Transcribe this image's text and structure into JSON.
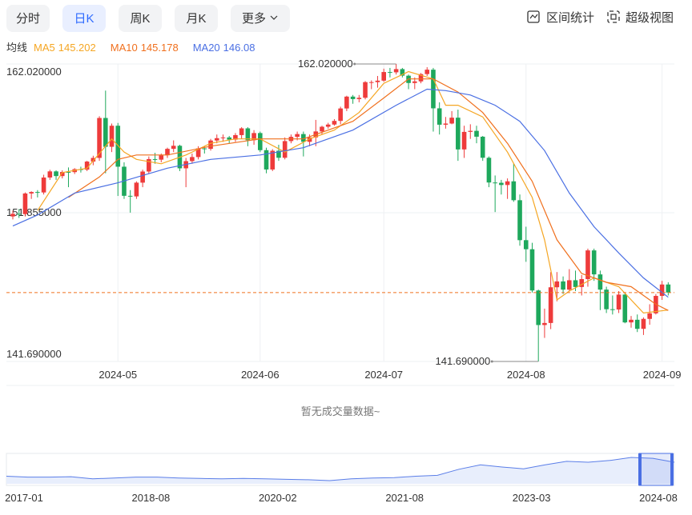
{
  "toolbar": {
    "tabs": [
      "分时",
      "日K",
      "周K",
      "月K",
      "更多"
    ],
    "active_tab": 1,
    "tools": [
      "区间统计",
      "超级视图"
    ]
  },
  "chart_data": {
    "type": "candlestick",
    "legend_title": "均线",
    "up_color": "#ee3b3b",
    "down_color": "#1ea85c",
    "categories": [
      null,
      null,
      null,
      null,
      null,
      null,
      null,
      null,
      null,
      null,
      null,
      null,
      null,
      null,
      null,
      null,
      null,
      "2024-05",
      null,
      null,
      null,
      null,
      null,
      null,
      null,
      null,
      null,
      null,
      null,
      null,
      null,
      null,
      null,
      null,
      null,
      null,
      null,
      null,
      null,
      null,
      "2024-06",
      null,
      null,
      null,
      null,
      null,
      null,
      null,
      null,
      null,
      null,
      null,
      null,
      null,
      null,
      null,
      null,
      null,
      null,
      null,
      "2024-07",
      null,
      null,
      null,
      null,
      null,
      null,
      null,
      null,
      null,
      null,
      null,
      null,
      null,
      null,
      null,
      null,
      null,
      null,
      null,
      null,
      null,
      null,
      "2024-08",
      null,
      null,
      null,
      null,
      null,
      null,
      null,
      null,
      null,
      null,
      null,
      null,
      null,
      null,
      null,
      null,
      null,
      null,
      null,
      null,
      null,
      "2024-09",
      null
    ],
    "open": [
      151.6,
      151.78,
      151.76,
      153.17,
      153.27,
      153.24,
      154.26,
      154.68,
      154.36,
      154.64,
      154.63,
      154.83,
      154.8,
      155.35,
      155.6,
      158.33,
      156.36,
      157.8,
      155.0,
      153.01,
      152.97,
      153.91,
      154.67,
      155.52,
      155.48,
      155.78,
      156.22,
      156.43,
      154.89,
      155.38,
      155.66,
      156.25,
      156.22,
      156.79,
      156.95,
      157.0,
      156.85,
      157.16,
      157.62,
      156.81,
      157.3,
      156.13,
      154.81,
      156.09,
      155.61,
      156.75,
      157.04,
      157.23,
      156.7,
      157.0,
      157.41,
      157.73,
      157.88,
      158.13,
      158.98,
      159.79,
      159.62,
      159.71,
      160.78,
      160.78,
      160.88,
      161.47,
      161.45,
      161.67,
      161.22,
      160.72,
      160.83,
      161.33,
      161.63,
      158.99,
      157.87,
      157.95,
      158.35,
      156.18,
      157.38,
      157.45,
      157.05,
      155.61,
      153.92,
      153.9,
      153.75,
      154.0,
      152.71,
      149.98,
      149.36,
      146.54,
      144.18,
      144.32,
      146.76,
      147.16,
      146.6,
      147.24,
      146.78,
      147.32,
      149.28,
      147.64,
      146.6,
      145.26,
      145.24,
      146.26,
      144.36,
      144.54,
      143.92,
      144.6,
      144.98,
      146.17,
      146.95
    ],
    "high": [
      152.0,
      152.1,
      153.24,
      153.32,
      153.4,
      154.45,
      154.79,
      154.75,
      154.75,
      154.95,
      154.9,
      155.0,
      155.4,
      155.75,
      158.45,
      160.2,
      157.95,
      157.99,
      155.3,
      153.4,
      154.0,
      154.8,
      155.7,
      155.95,
      155.9,
      156.3,
      156.8,
      156.5,
      155.6,
      155.9,
      156.4,
      156.4,
      156.9,
      157.2,
      157.2,
      157.1,
      157.3,
      157.7,
      157.7,
      157.5,
      157.4,
      156.3,
      156.2,
      156.5,
      157.0,
      157.2,
      157.4,
      157.4,
      157.2,
      158.2,
      157.8,
      158.0,
      158.25,
      159.1,
      159.85,
      159.9,
      159.9,
      160.85,
      160.9,
      161.2,
      161.7,
      161.75,
      162.02,
      161.75,
      161.3,
      161.1,
      161.4,
      161.8,
      161.75,
      159.4,
      158.4,
      158.8,
      158.9,
      157.8,
      157.9,
      157.8,
      157.1,
      155.7,
      154.4,
      154.1,
      154.2,
      155.2,
      153.1,
      150.9,
      149.8,
      146.6,
      145.3,
      147.8,
      147.8,
      147.5,
      148.0,
      147.9,
      147.6,
      149.4,
      149.4,
      147.9,
      146.8,
      146.2,
      146.5,
      146.4,
      144.8,
      144.9,
      144.7,
      145.6,
      146.3,
      147.2,
      147.1
    ],
    "low": [
      151.4,
      151.5,
      151.6,
      152.8,
      152.9,
      153.1,
      154.1,
      154.1,
      154.2,
      153.6,
      154.5,
      154.6,
      154.7,
      155.1,
      155.4,
      154.55,
      156.0,
      153.0,
      152.8,
      151.86,
      152.8,
      153.6,
      154.5,
      155.2,
      155.3,
      155.6,
      156.0,
      154.7,
      153.6,
      155.2,
      155.5,
      155.9,
      156.1,
      156.6,
      156.7,
      156.6,
      156.7,
      156.9,
      156.4,
      156.5,
      156.0,
      154.55,
      154.7,
      155.4,
      155.5,
      156.6,
      156.8,
      155.7,
      156.4,
      156.4,
      157.2,
      157.6,
      157.8,
      157.9,
      158.8,
      159.3,
      159.4,
      159.6,
      160.3,
      160.4,
      160.8,
      161.1,
      161.3,
      161.1,
      160.3,
      160.3,
      160.7,
      161.2,
      157.4,
      157.2,
      157.6,
      157.9,
      155.4,
      155.6,
      156.9,
      156.6,
      155.4,
      153.6,
      151.9,
      153.1,
      152.8,
      152.6,
      149.6,
      148.5,
      146.4,
      141.69,
      143.3,
      143.9,
      145.8,
      146.3,
      146.5,
      146.5,
      146.2,
      146.8,
      147.2,
      145.2,
      145.0,
      144.9,
      145.0,
      144.3,
      144.0,
      143.7,
      143.5,
      144.2,
      144.9,
      145.9,
      146.2
    ],
    "close": [
      151.78,
      151.76,
      153.17,
      153.27,
      153.24,
      154.26,
      154.68,
      154.36,
      154.64,
      154.63,
      154.83,
      154.8,
      155.35,
      155.6,
      158.33,
      156.36,
      157.8,
      155.0,
      153.01,
      152.97,
      153.91,
      154.67,
      155.52,
      155.48,
      155.78,
      156.22,
      156.43,
      154.89,
      155.38,
      155.66,
      156.25,
      156.22,
      156.79,
      156.95,
      157.0,
      156.85,
      157.16,
      157.62,
      156.81,
      157.3,
      156.13,
      154.81,
      156.09,
      155.61,
      156.75,
      157.04,
      157.23,
      156.7,
      157.0,
      157.41,
      157.73,
      157.88,
      158.13,
      158.98,
      159.79,
      159.62,
      159.71,
      160.78,
      160.78,
      160.88,
      161.47,
      161.45,
      161.67,
      161.22,
      160.72,
      160.83,
      161.33,
      161.63,
      158.99,
      157.87,
      157.95,
      158.35,
      156.18,
      157.38,
      157.45,
      157.05,
      155.61,
      153.92,
      153.9,
      153.75,
      154.0,
      152.71,
      149.98,
      149.36,
      146.54,
      144.18,
      144.32,
      146.76,
      147.16,
      146.6,
      147.24,
      146.78,
      147.32,
      149.28,
      147.64,
      146.6,
      145.26,
      145.24,
      146.26,
      144.36,
      144.54,
      143.92,
      144.6,
      144.98,
      146.17,
      146.95,
      146.4
    ],
    "ylim": [
      141.69,
      162.02
    ],
    "yticks": [
      {
        "value": 162.02,
        "label": "162.020000"
      },
      {
        "value": 151.855,
        "label": "151.855000"
      },
      {
        "value": 141.69,
        "label": "141.690000"
      }
    ],
    "annotations": [
      {
        "label": "162.020000",
        "value": 162.02,
        "x": 62
      },
      {
        "label": "141.690000",
        "value": 141.69,
        "x": 85
      }
    ],
    "series": [
      {
        "name": "MA5",
        "color": "#f5a623",
        "x": [
          4,
          8,
          12,
          16,
          18,
          20,
          24,
          28,
          32,
          36,
          40,
          44,
          48,
          52,
          56,
          60,
          64,
          68,
          70,
          72,
          76,
          80,
          84,
          86,
          88,
          90,
          94,
          98,
          102,
          106
        ],
        "values": [
          152.0,
          154.6,
          154.9,
          156.9,
          156.0,
          155.5,
          155.2,
          155.8,
          156.6,
          156.9,
          156.9,
          156.0,
          156.9,
          157.5,
          158.7,
          160.7,
          161.5,
          161.0,
          159.2,
          159.2,
          158.4,
          156.0,
          152.9,
          150.0,
          145.9,
          146.5,
          147.4,
          146.8,
          145.0,
          145.202
        ]
      },
      {
        "name": "MA10",
        "color": "#f0701e",
        "x": [
          9,
          14,
          17,
          20,
          25,
          32,
          40,
          47,
          55,
          60,
          64,
          68,
          72,
          76,
          80,
          84,
          88,
          92,
          96,
          100,
          104,
          106
        ],
        "values": [
          152.9,
          154.3,
          155.5,
          155.8,
          155.8,
          156.4,
          156.9,
          156.9,
          158.1,
          159.7,
          161.0,
          161.0,
          160.1,
          158.7,
          156.6,
          154.0,
          150.0,
          147.7,
          147.1,
          146.8,
          145.6,
          145.178
        ]
      },
      {
        "name": "MA20",
        "color": "#4a6fe3",
        "x": [
          0,
          4,
          10,
          17,
          25,
          32,
          40,
          47,
          55,
          62,
          67,
          70,
          74,
          78,
          82,
          86,
          90,
          94,
          98,
          102,
          106
        ],
        "values": [
          150.95,
          151.7,
          153.2,
          153.9,
          154.9,
          155.5,
          155.8,
          156.3,
          157.5,
          159.2,
          160.3,
          160.2,
          159.9,
          159.2,
          158.1,
          156.1,
          153.2,
          150.9,
          149.1,
          147.4,
          146.08
        ]
      }
    ]
  },
  "volume_message": "暂无成交量数据~",
  "navigator": {
    "x_labels": [
      "2017-01",
      "2018-08",
      "2020-02",
      "2021-08",
      "2023-03",
      "2024-08"
    ],
    "values": [
      114,
      112,
      112,
      113,
      108,
      110,
      112,
      112,
      110,
      109,
      108,
      109,
      108,
      107,
      106,
      104,
      108,
      110,
      111,
      114,
      116,
      130,
      140,
      135,
      131,
      140,
      148,
      146,
      150,
      157,
      155,
      146
    ]
  }
}
